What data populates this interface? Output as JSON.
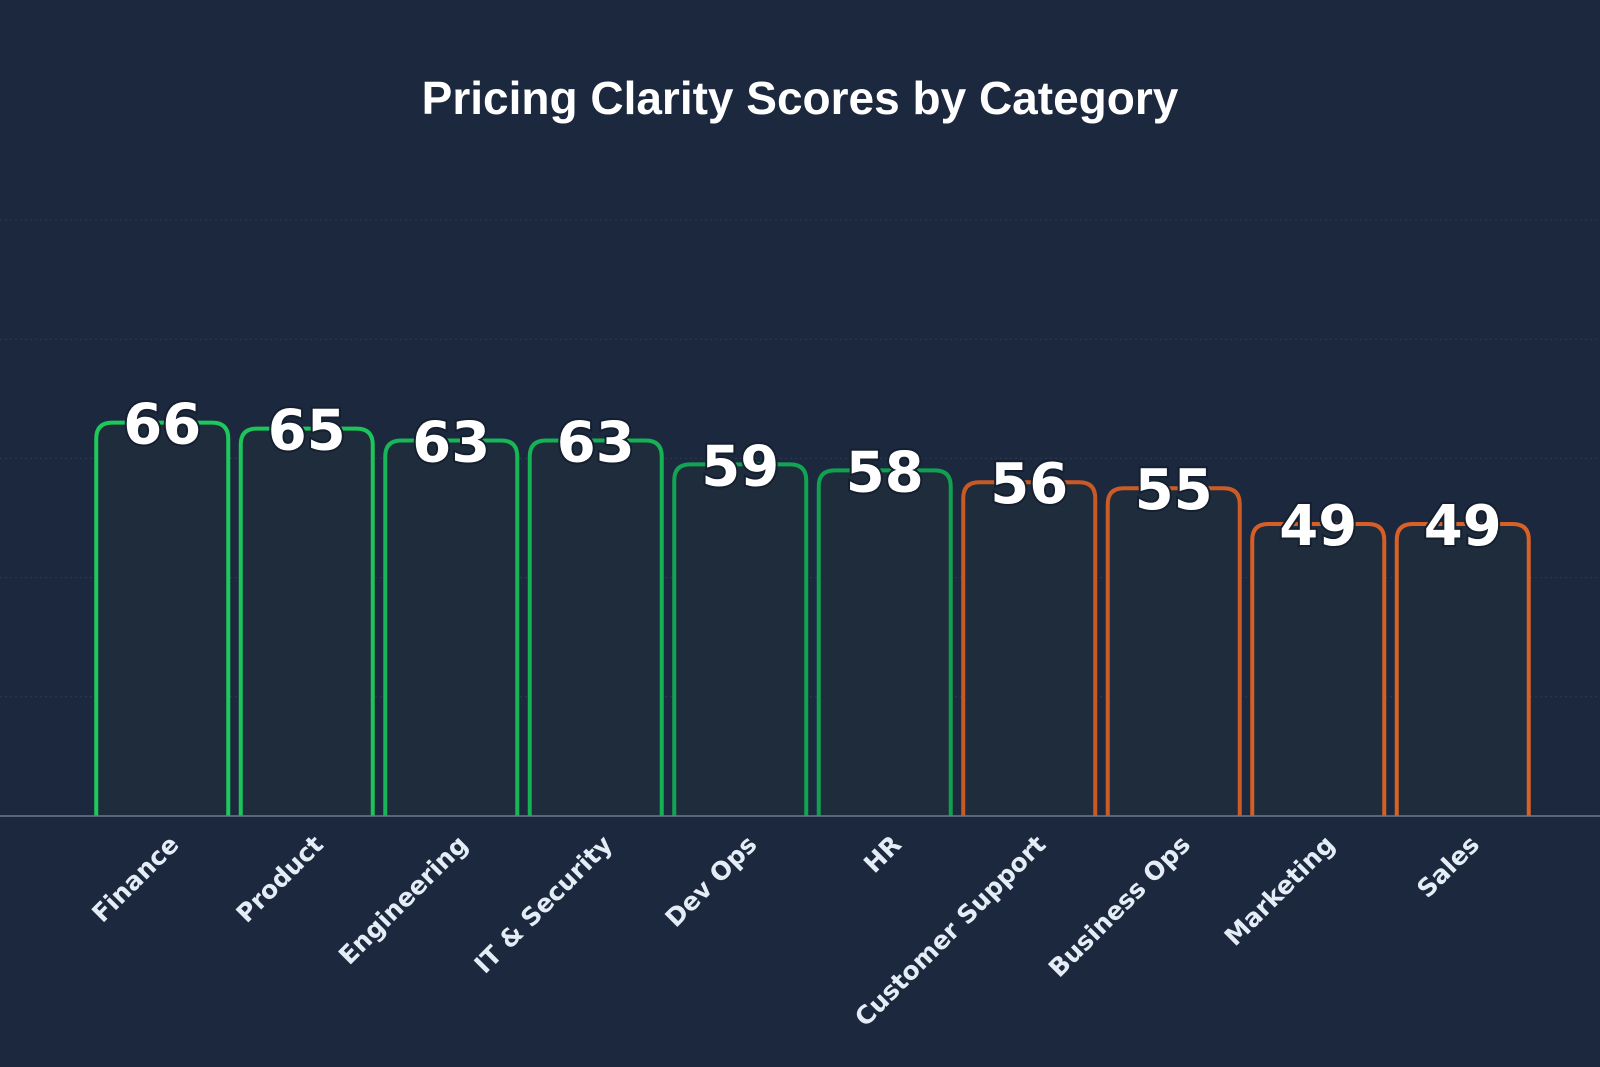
{
  "chart_data": {
    "type": "bar",
    "title": "Pricing Clarity Scores by Category",
    "xlabel": "",
    "ylabel": "",
    "categories": [
      "Finance",
      "Product",
      "Engineering",
      "IT & Security",
      "Dev Ops",
      "HR",
      "Customer Support",
      "Business Ops",
      "Marketing",
      "Sales"
    ],
    "values": [
      66,
      65,
      63,
      63,
      59,
      58,
      56,
      55,
      49,
      49
    ],
    "ylim": [
      0,
      100
    ],
    "grid": true,
    "legend": "none",
    "bar_outline_colors": [
      "#1ec95b",
      "#1cc459",
      "#17b656",
      "#15b155",
      "#12a452",
      "#11a050",
      "#c95a25",
      "#cc5c26",
      "#d55f27",
      "#d86128"
    ],
    "bar_fill_color": "#1f2c3c",
    "background_color": "#1b283d",
    "grid_color": "#2d3b52",
    "axis_color": "#6d7a8c"
  }
}
